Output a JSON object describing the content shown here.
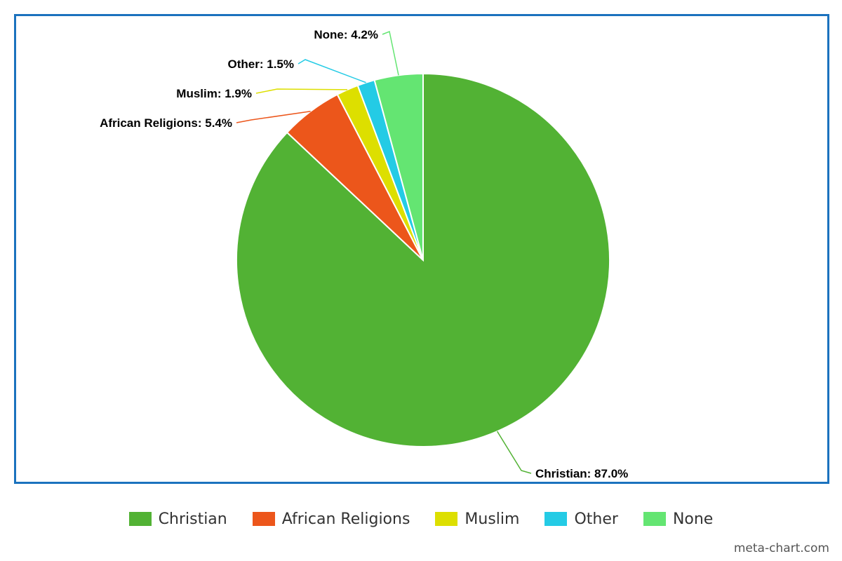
{
  "chart_data": {
    "type": "pie",
    "title": "",
    "slices": [
      {
        "name": "Christian",
        "value": 87.0,
        "label": "Christian: 87.0%",
        "color": "#52b234"
      },
      {
        "name": "African Religions",
        "value": 5.4,
        "label": "African Religions: 5.4%",
        "color": "#ec561b"
      },
      {
        "name": "Muslim",
        "value": 1.9,
        "label": "Muslim: 1.9%",
        "color": "#dddf00"
      },
      {
        "name": "Other",
        "value": 1.5,
        "label": "Other: 1.5%",
        "color": "#24cbe5"
      },
      {
        "name": "None",
        "value": 4.2,
        "label": "None: 4.2%",
        "color": "#64e572"
      }
    ],
    "start_angle": "12 o'clock",
    "direction": "clockwise",
    "legend_position": "bottom",
    "frame_color": "#1b72be"
  },
  "legend": {
    "items": [
      {
        "label": "Christian",
        "color": "#52b234"
      },
      {
        "label": "African Religions",
        "color": "#ec561b"
      },
      {
        "label": "Muslim",
        "color": "#dddf00"
      },
      {
        "label": "Other",
        "color": "#24cbe5"
      },
      {
        "label": "None",
        "color": "#64e572"
      }
    ]
  },
  "credit": "meta-chart.com"
}
